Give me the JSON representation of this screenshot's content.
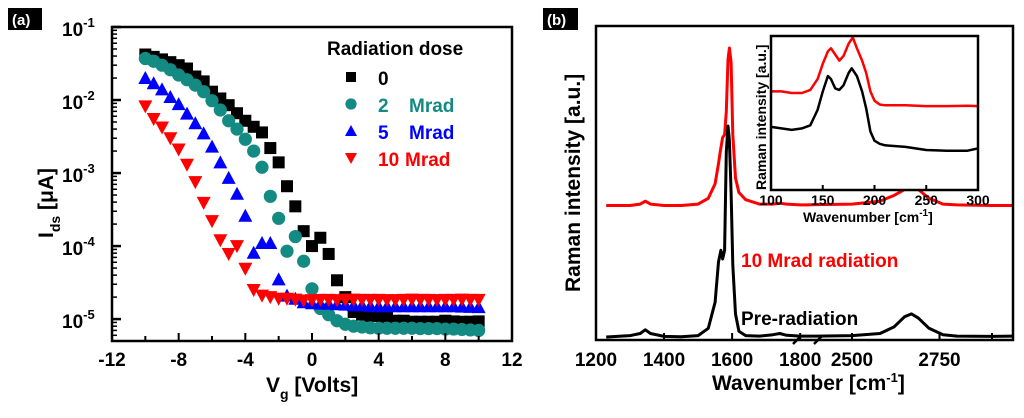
{
  "chart_data": [
    {
      "panel_label": "(a)",
      "type": "scatter",
      "xlabel_main": "V",
      "xlabel_sub": "g",
      "xlabel_rest": " [Volts]",
      "ylabel_main": "I",
      "ylabel_sub": "ds",
      "ylabel_rest": " [μA]",
      "xlim": [
        -12,
        12
      ],
      "ylim_log10": [
        -5.3,
        -1
      ],
      "yscale": "log",
      "xticks": [
        -12,
        -8,
        -4,
        0,
        4,
        8,
        12
      ],
      "xtick_labels": [
        "-12",
        "-8",
        "-4",
        "0",
        "4",
        "8",
        "12"
      ],
      "yticks_exp": [
        -1,
        -2,
        -3,
        -4,
        -5
      ],
      "ytick_base": "10",
      "legend": {
        "title": "Radiation dose",
        "placement": "top-right",
        "entries": [
          {
            "number": "0",
            "unit": ""
          },
          {
            "number": "2",
            "unit": "Mrad"
          },
          {
            "number": "5",
            "unit": "Mrad"
          },
          {
            "number": "10",
            "unit": "Mrad"
          }
        ]
      },
      "x": [
        -10,
        -9.5,
        -9,
        -8.5,
        -8,
        -7.5,
        -7,
        -6.5,
        -6,
        -5.5,
        -5,
        -4.5,
        -4,
        -3.5,
        -3,
        -2.5,
        -2,
        -1.5,
        -1,
        -0.5,
        0,
        0.5,
        1,
        1.5,
        2,
        2.5,
        3,
        3.5,
        4,
        4.5,
        5,
        5.5,
        6,
        6.5,
        7,
        7.5,
        8,
        8.5,
        9,
        9.5,
        10
      ],
      "series": [
        {
          "name": "0",
          "color": "#000000",
          "marker": "square",
          "values": [
            0.042,
            0.039,
            0.036,
            0.033,
            0.03,
            0.027,
            0.021,
            0.018,
            0.013,
            0.0105,
            0.0085,
            0.0066,
            0.0052,
            0.0043,
            0.0036,
            0.0022,
            0.0014,
            0.00066,
            0.00035,
            0.00016,
            0.0001,
            0.00013,
            7.8e-05,
            3.4e-05,
            2e-05,
            1.25e-05,
            1.15e-05,
            1.1e-05,
            1.1e-05,
            1.05e-05,
            9.5e-06,
            9.5e-06,
            9.2e-06,
            9.2e-06,
            9.2e-06,
            9.2e-06,
            9.5e-06,
            9.3e-06,
            9.2e-06,
            9.2e-06,
            9.3e-06
          ]
        },
        {
          "name": "2 Mrad",
          "color": "#138a82",
          "marker": "circle",
          "values": [
            0.037,
            0.034,
            0.03,
            0.026,
            0.022,
            0.019,
            0.016,
            0.013,
            0.0098,
            0.0073,
            0.0052,
            0.004,
            0.0029,
            0.002,
            0.0012,
            0.00048,
            0.00024,
            8.5e-05,
            0.000135,
            6.2e-05,
            2.6e-05,
            1.4e-05,
            1.15e-05,
            9.5e-06,
            8.5e-06,
            8e-06,
            7.8e-06,
            7.6e-06,
            7.5e-06,
            7.5e-06,
            7.5e-06,
            7.5e-06,
            7.5e-06,
            7.4e-06,
            7.4e-06,
            7.4e-06,
            7.3e-06,
            7.3e-06,
            7.2e-06,
            7.1e-06,
            7e-06
          ]
        },
        {
          "name": "5 Mrad",
          "color": "#0000ff",
          "marker": "triangle-up",
          "values": [
            0.02,
            0.017,
            0.014,
            0.011,
            0.0088,
            0.0065,
            0.0048,
            0.0035,
            0.0023,
            0.0014,
            0.00086,
            0.00052,
            0.00026,
            8.1e-05,
            0.00011,
            0.00011,
            3.5e-05,
            2.1e-05,
            1.9e-05,
            1.7e-05,
            1.65e-05,
            1.63e-05,
            1.62e-05,
            1.6e-05,
            1.58e-05,
            1.55e-05,
            1.55e-05,
            1.52e-05,
            1.5e-05,
            1.5e-05,
            1.5e-05,
            1.5e-05,
            1.5e-05,
            1.5e-05,
            1.5e-05,
            1.5e-05,
            1.5e-05,
            1.5e-05,
            1.48e-05,
            1.47e-05,
            1.46e-05
          ]
        },
        {
          "name": "10 Mrad",
          "color": "#ff0000",
          "marker": "triangle-down",
          "values": [
            0.0082,
            0.0055,
            0.0042,
            0.003,
            0.0021,
            0.0013,
            0.00075,
            0.00039,
            0.00022,
            0.00012,
            7.8e-05,
            0.0001,
            4.9e-05,
            2.5e-05,
            2.1e-05,
            2e-05,
            1.9e-05,
            1.9e-05,
            1.85e-05,
            1.8e-05,
            1.82e-05,
            1.83e-05,
            1.83e-05,
            1.82e-05,
            1.85e-05,
            1.85e-05,
            1.83e-05,
            1.83e-05,
            1.83e-05,
            1.82e-05,
            1.82e-05,
            1.83e-05,
            1.85e-05,
            1.83e-05,
            1.83e-05,
            1.82e-05,
            1.83e-05,
            1.83e-05,
            1.85e-05,
            1.83e-05,
            1.83e-05
          ]
        }
      ]
    },
    {
      "panel_label": "(b)",
      "type": "line",
      "xlabel": "Wavenumber [cm",
      "xlabel_sup": "-1",
      "xlabel_close": "]",
      "ylabel": "Raman intensity [a.u.]",
      "axis_break": [
        1820,
        2400
      ],
      "xlim_left": [
        1200,
        1820
      ],
      "xlim_right": [
        2400,
        2960
      ],
      "xtick_labels": [
        "1200",
        "1400",
        "1600",
        "1800",
        "2500",
        "2750"
      ],
      "xticks": [
        1200,
        1400,
        1600,
        1800,
        2500,
        2750
      ],
      "yticks": [],
      "annotations": [
        {
          "text": "10 Mrad radiation",
          "color": "#ff0000"
        },
        {
          "text": "Pre-radiation",
          "color": "#000000"
        }
      ],
      "series": [
        {
          "name": "10 Mrad radiation",
          "color": "#ff0000",
          "x": [
            1230,
            1300,
            1330,
            1345,
            1360,
            1400,
            1450,
            1500,
            1530,
            1550,
            1560,
            1565,
            1572,
            1578,
            1583,
            1588,
            1592,
            1597,
            1602,
            1610,
            1620,
            1640,
            1680,
            1720,
            1740,
            1760,
            1800,
            1820,
            2400,
            2500,
            2580,
            2620,
            2650,
            2670,
            2690,
            2720,
            2760,
            2800,
            2900,
            2960
          ],
          "values": [
            0.455,
            0.455,
            0.46,
            0.47,
            0.46,
            0.455,
            0.455,
            0.46,
            0.48,
            0.53,
            0.6,
            0.64,
            0.69,
            0.7,
            0.78,
            0.96,
            1.0,
            0.95,
            0.7,
            0.55,
            0.5,
            0.475,
            0.46,
            0.46,
            0.463,
            0.46,
            0.457,
            0.457,
            0.458,
            0.46,
            0.47,
            0.49,
            0.51,
            0.525,
            0.51,
            0.48,
            0.46,
            0.457,
            0.455,
            0.455
          ]
        },
        {
          "name": "Pre-radiation",
          "color": "#000000",
          "x": [
            1230,
            1300,
            1330,
            1345,
            1360,
            1400,
            1450,
            1500,
            1530,
            1550,
            1560,
            1567,
            1572,
            1578,
            1583,
            1588,
            1592,
            1597,
            1602,
            1610,
            1620,
            1640,
            1680,
            1720,
            1740,
            1760,
            1800,
            1820,
            2400,
            2500,
            2580,
            2620,
            2650,
            2670,
            2690,
            2720,
            2760,
            2800,
            2900,
            2960
          ],
          "values": [
            0.0,
            0.005,
            0.012,
            0.025,
            0.012,
            0.002,
            0.001,
            0.005,
            0.03,
            0.12,
            0.26,
            0.3,
            0.27,
            0.3,
            0.64,
            0.73,
            0.68,
            0.5,
            0.25,
            0.08,
            0.02,
            0.005,
            0.003,
            0.008,
            0.012,
            0.006,
            0.003,
            0.003,
            0.003,
            0.005,
            0.012,
            0.035,
            0.07,
            0.08,
            0.065,
            0.03,
            0.008,
            0.003,
            0.002,
            0.003
          ]
        }
      ],
      "inset": {
        "type": "line",
        "xlabel": "Wavenumber [cm",
        "xlabel_sup": "-1",
        "xlabel_close": "]",
        "ylabel": "Raman intensity [a.u.]",
        "xlim": [
          100,
          300
        ],
        "ylim": [
          0,
          1
        ],
        "xticks": [
          100,
          150,
          200,
          250,
          300
        ],
        "xtick_labels": [
          "100",
          "150",
          "200",
          "250",
          "300"
        ],
        "series": [
          {
            "name": "10 Mrad radiation",
            "color": "#ff0000",
            "x": [
              100,
              110,
              120,
              130,
              138,
              145,
              150,
              155,
              158,
              162,
              166,
              170,
              175,
              179,
              183,
              188,
              192,
              196,
              200,
              205,
              210,
              230,
              250,
              270,
              290,
              300
            ],
            "values": [
              0.64,
              0.64,
              0.63,
              0.63,
              0.65,
              0.72,
              0.82,
              0.9,
              0.92,
              0.88,
              0.84,
              0.87,
              0.95,
              0.99,
              0.92,
              0.84,
              0.76,
              0.64,
              0.58,
              0.555,
              0.55,
              0.55,
              0.545,
              0.545,
              0.547,
              0.545
            ]
          },
          {
            "name": "Pre-radiation",
            "color": "#000000",
            "x": [
              100,
              110,
              120,
              130,
              138,
              145,
              150,
              155,
              158,
              162,
              166,
              170,
              175,
              178,
              183,
              188,
              192,
              196,
              200,
              205,
              210,
              230,
              250,
              270,
              290,
              300
            ],
            "values": [
              0.41,
              0.4,
              0.39,
              0.4,
              0.42,
              0.52,
              0.64,
              0.74,
              0.72,
              0.66,
              0.65,
              0.68,
              0.76,
              0.79,
              0.74,
              0.64,
              0.53,
              0.38,
              0.32,
              0.3,
              0.29,
              0.28,
              0.26,
              0.255,
              0.255,
              0.27
            ]
          }
        ]
      }
    }
  ]
}
